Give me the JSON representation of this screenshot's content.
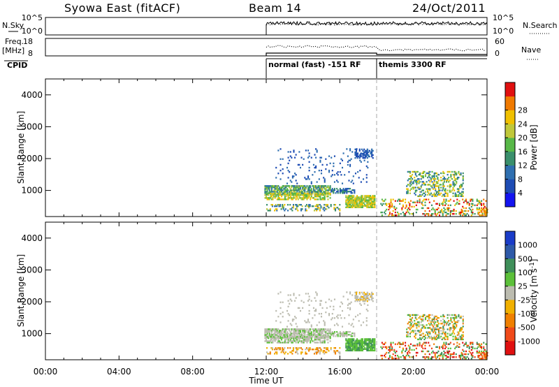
{
  "header": {
    "station": "Syowa East (fitACF)",
    "beam": "Beam 14",
    "date": "24/Oct/2011"
  },
  "sky_panel": {
    "left_label": "N.Sky",
    "left_ticks": [
      "10^5",
      "10^0"
    ],
    "right_label": "N.Search",
    "right_ticks": [
      "10^5",
      "10^0"
    ]
  },
  "freq_panel": {
    "left_label_1": "Freq.",
    "left_label_2": "[MHz]",
    "left_ticks": [
      "18",
      "8"
    ],
    "right_label": "Nave",
    "right_ticks": [
      "60",
      "0"
    ]
  },
  "cpid": {
    "label": "CPID",
    "segments": [
      {
        "label": "normal (fast) -151 RF",
        "start_hour": 12.0,
        "end_hour": 18.0
      },
      {
        "label": "themis 3300 RF",
        "start_hour": 18.0,
        "end_hour": 24.0
      }
    ]
  },
  "chart_data": [
    {
      "type": "heatmap",
      "name": "power",
      "ylabel": "Slant Range [km]",
      "xlabel": "",
      "xlim": [
        0,
        24
      ],
      "ylim": [
        180,
        4500
      ],
      "xticks": [
        0,
        4,
        8,
        12,
        16,
        20,
        24
      ],
      "yticks": [
        1000,
        2000,
        3000,
        4000
      ],
      "colorbar": {
        "label": "Power [dB]",
        "ticks": [
          "4",
          "8",
          "12",
          "16",
          "20",
          "24",
          "28"
        ],
        "colors": [
          "#1414f0",
          "#1e4cb4",
          "#2f6fb0",
          "#3a8f6c",
          "#58b848",
          "#c0c83a",
          "#f0c000",
          "#f07a00",
          "#e01010"
        ]
      }
    },
    {
      "type": "heatmap",
      "name": "velocity",
      "ylabel": "Slant Range [km]",
      "xlabel": "Time UT",
      "xlim": [
        0,
        24
      ],
      "ylim": [
        180,
        4500
      ],
      "xticks": [
        0,
        4,
        8,
        12,
        16,
        20,
        24
      ],
      "xtick_labels": [
        "00:00",
        "04:00",
        "08:00",
        "12:00",
        "16:00",
        "20:00",
        "00:00"
      ],
      "yticks": [
        1000,
        2000,
        3000,
        4000
      ],
      "colorbar": {
        "label": "Velocity [m s-1]",
        "ticks": [
          "1000",
          "500",
          "100",
          "25",
          "-25",
          "-100",
          "-500",
          "-1000"
        ],
        "colors": [
          "#1a3cc8",
          "#2e5aa8",
          "#3f8f5a",
          "#5cc03a",
          "#bcbcb0",
          "#f0b000",
          "#f08000",
          "#f04a1a",
          "#e01010"
        ]
      }
    }
  ]
}
